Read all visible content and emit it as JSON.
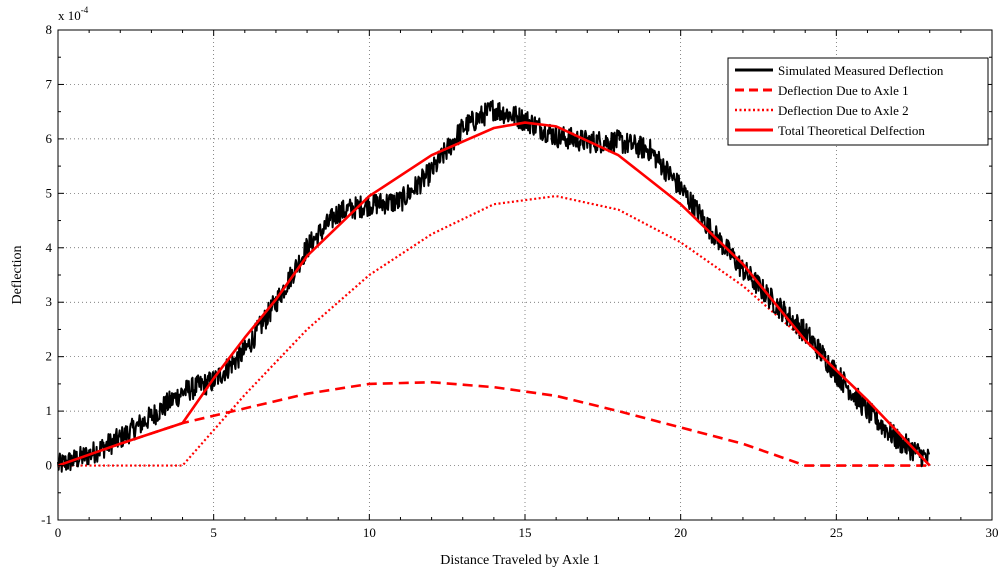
{
  "chart_data": {
    "type": "line",
    "title": "",
    "xlabel": "Distance Traveled by Axle 1",
    "ylabel": "Deflection",
    "y_exponent_label": "x 10",
    "y_exponent_power": "-4",
    "xlim": [
      0,
      30
    ],
    "ylim": [
      -1,
      8
    ],
    "x_ticks": [
      0,
      5,
      10,
      15,
      20,
      25,
      30
    ],
    "y_ticks": [
      -1,
      0,
      1,
      2,
      3,
      4,
      5,
      6,
      7,
      8
    ],
    "x_tick_labels": [
      "0",
      "5",
      "10",
      "15",
      "20",
      "25",
      "30"
    ],
    "y_tick_labels": [
      "-1",
      "0",
      "1",
      "2",
      "3",
      "4",
      "5",
      "6",
      "7",
      "8"
    ],
    "grid": true,
    "legend_position": "top-right",
    "legend": [
      "Simulated Measured Deflection",
      "Deflection Due to Axle 1",
      "Deflection Due to Axle 2",
      "Total Theoretical Delfection"
    ],
    "series": [
      {
        "name": "Simulated Measured Deflection",
        "color": "#000000",
        "style": "solid",
        "x": [
          0,
          1,
          2,
          3,
          4,
          5,
          6,
          7,
          8,
          9,
          10,
          11,
          12,
          13,
          14,
          15,
          16,
          17,
          18,
          19,
          20,
          21,
          22,
          23,
          24,
          25,
          26,
          27,
          28
        ],
        "y": [
          0.0,
          0.2,
          0.5,
          0.9,
          1.35,
          1.55,
          2.1,
          3.0,
          4.0,
          4.65,
          4.8,
          4.85,
          5.4,
          6.2,
          6.55,
          6.35,
          6.05,
          5.95,
          5.95,
          5.8,
          5.1,
          4.3,
          3.6,
          3.0,
          2.45,
          1.7,
          1.0,
          0.45,
          0.1
        ]
      },
      {
        "name": "Deflection Due to Axle 1",
        "color": "#ff0000",
        "style": "dashed",
        "x": [
          0,
          2,
          4,
          6,
          8,
          10,
          12,
          14,
          16,
          18,
          20,
          22,
          24,
          25,
          26,
          27,
          28
        ],
        "y": [
          0.0,
          0.4,
          0.78,
          1.05,
          1.32,
          1.5,
          1.53,
          1.44,
          1.28,
          1.0,
          0.7,
          0.4,
          0.0,
          0.0,
          0.0,
          0.0,
          0.0
        ]
      },
      {
        "name": "Deflection Due to Axle 2",
        "color": "#ff0000",
        "style": "dotted",
        "x": [
          0,
          2,
          4,
          6,
          8,
          10,
          12,
          14,
          16,
          18,
          20,
          22,
          24,
          26,
          28
        ],
        "y": [
          0.0,
          0.0,
          0.0,
          1.3,
          2.5,
          3.5,
          4.25,
          4.8,
          4.95,
          4.7,
          4.1,
          3.3,
          2.3,
          1.2,
          0.0
        ]
      },
      {
        "name": "Total Theoretical Delfection",
        "color": "#ff0000",
        "style": "solid",
        "x": [
          0,
          2,
          4,
          5,
          6,
          7,
          8,
          10,
          12,
          14,
          15,
          16,
          18,
          20,
          22,
          24,
          26,
          28
        ],
        "y": [
          0.0,
          0.4,
          0.78,
          1.6,
          2.35,
          3.05,
          3.85,
          4.95,
          5.7,
          6.2,
          6.3,
          6.23,
          5.7,
          4.8,
          3.7,
          2.3,
          1.2,
          0.0
        ]
      }
    ]
  }
}
